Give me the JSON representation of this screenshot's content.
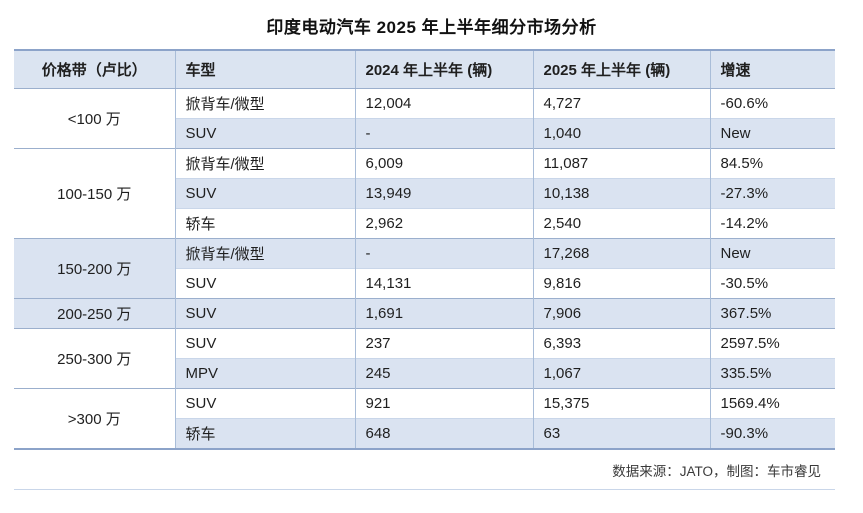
{
  "chart_data": {
    "type": "table",
    "title": "印度电动汽车 2025 年上半年细分市场分析",
    "columns": [
      "价格带（卢比）",
      "车型",
      "2024 年上半年 (辆)",
      "2025 年上半年 (辆)",
      "增速"
    ],
    "groups": [
      {
        "band": "<100 万",
        "rows": [
          {
            "type": "掀背车/微型",
            "h1_2024": "12,004",
            "h1_2025": "4,727",
            "growth": "-60.6%"
          },
          {
            "type": "SUV",
            "h1_2024": "-",
            "h1_2025": "1,040",
            "growth": "New"
          }
        ]
      },
      {
        "band": "100-150 万",
        "rows": [
          {
            "type": "掀背车/微型",
            "h1_2024": "6,009",
            "h1_2025": "11,087",
            "growth": "84.5%"
          },
          {
            "type": "SUV",
            "h1_2024": "13,949",
            "h1_2025": "10,138",
            "growth": "-27.3%"
          },
          {
            "type": "轿车",
            "h1_2024": "2,962",
            "h1_2025": "2,540",
            "growth": "-14.2%"
          }
        ]
      },
      {
        "band": "150-200 万",
        "rows": [
          {
            "type": "掀背车/微型",
            "h1_2024": "-",
            "h1_2025": "17,268",
            "growth": "New"
          },
          {
            "type": "SUV",
            "h1_2024": "14,131",
            "h1_2025": "9,816",
            "growth": "-30.5%"
          }
        ]
      },
      {
        "band": "200-250 万",
        "rows": [
          {
            "type": "SUV",
            "h1_2024": "1,691",
            "h1_2025": "7,906",
            "growth": "367.5%"
          }
        ]
      },
      {
        "band": "250-300 万",
        "rows": [
          {
            "type": "SUV",
            "h1_2024": "237",
            "h1_2025": "6,393",
            "growth": "2597.5%"
          },
          {
            "type": "MPV",
            "h1_2024": "245",
            "h1_2025": "1,067",
            "growth": "335.5%"
          }
        ]
      },
      {
        "band": ">300 万",
        "rows": [
          {
            "type": "SUV",
            "h1_2024": "921",
            "h1_2025": "15,375",
            "growth": "1569.4%"
          },
          {
            "type": "轿车",
            "h1_2024": "648",
            "h1_2025": "63",
            "growth": "-90.3%"
          }
        ]
      }
    ],
    "source_note": "数据来源：JATO，制图：车市睿见",
    "layout": {
      "stripe_color": "#dae3f1",
      "header_bg": "#dbe4f1",
      "group_line_color": "#9bafcd",
      "top_border_color": "#8ca3c9"
    }
  }
}
